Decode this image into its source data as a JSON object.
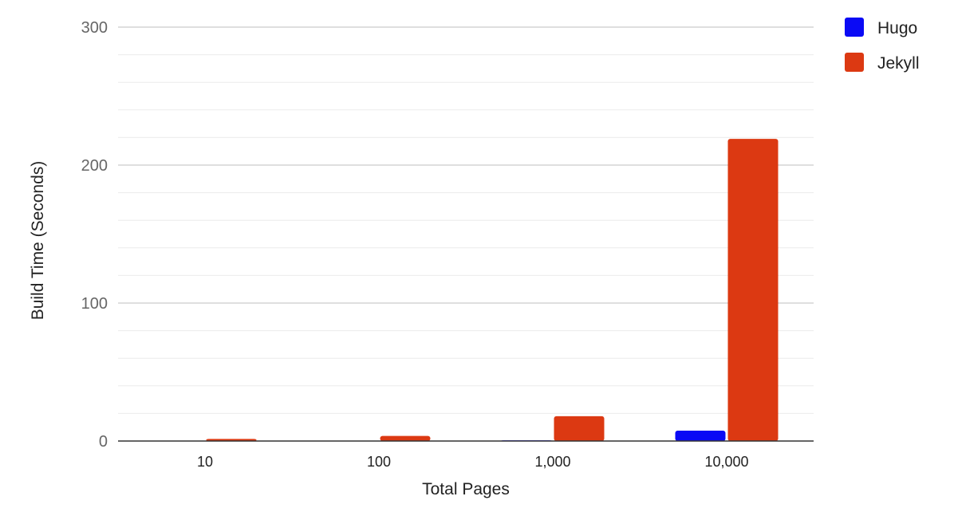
{
  "chart_data": {
    "type": "bar",
    "title": "",
    "xlabel": "Total Pages",
    "ylabel": "Build Time (Seconds)",
    "categories": [
      "10",
      "100",
      "1,000",
      "10,000"
    ],
    "series": [
      {
        "name": "Hugo",
        "color": "#0a0af5",
        "values": [
          0.05,
          0.1,
          0.5,
          7.5
        ]
      },
      {
        "name": "Jekyll",
        "color": "#dc3912",
        "values": [
          1.5,
          3.7,
          18,
          219
        ]
      }
    ],
    "ylim": [
      0,
      300
    ],
    "yticks": [
      "0",
      "100",
      "200",
      "300"
    ],
    "y_tick_values": [
      0,
      100,
      200,
      300
    ],
    "minor_grid_step": 20,
    "grid": true,
    "legend": "top-right"
  }
}
